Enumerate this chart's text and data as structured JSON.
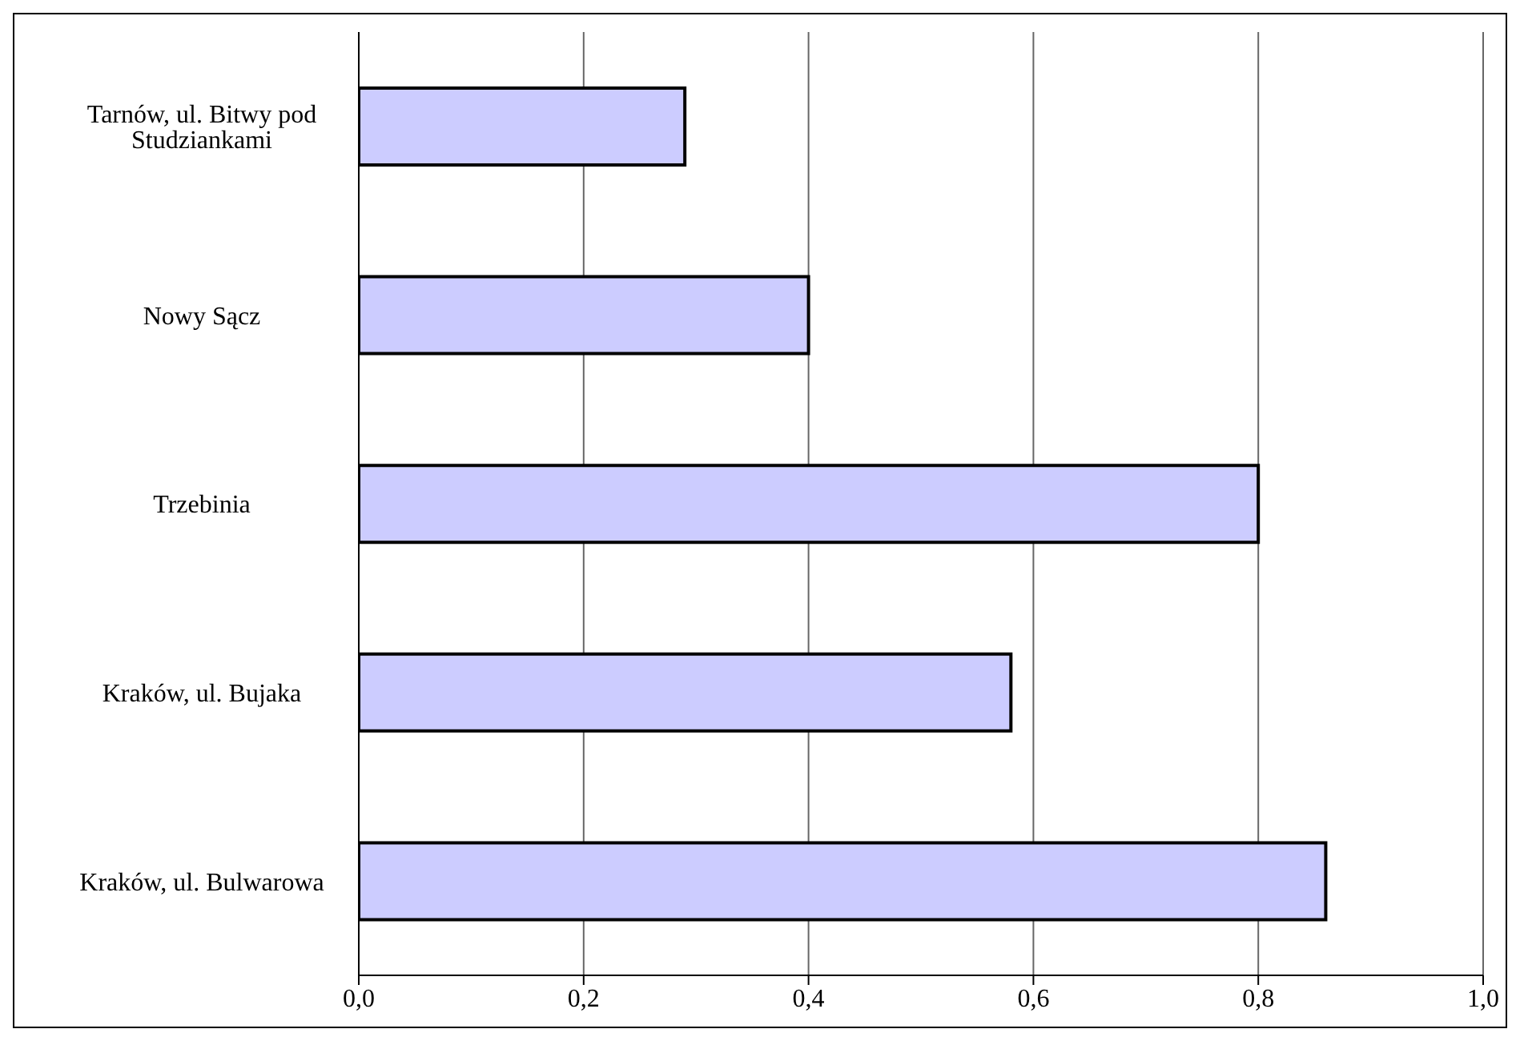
{
  "chart_data": {
    "type": "bar",
    "orientation": "horizontal",
    "categories": [
      "Tarnów, ul. Bitwy pod Studziankami",
      "Nowy Sącz",
      "Trzebinia",
      "Kraków, ul. Bujaka",
      "Kraków, ul. Bulwarowa"
    ],
    "values": [
      0.29,
      0.4,
      0.8,
      0.58,
      0.86
    ],
    "color": "#ccccff",
    "xlim": [
      0,
      1
    ],
    "xticks": [
      {
        "value": 0,
        "label": "0,0"
      },
      {
        "value": 0.2,
        "label": "0,2"
      },
      {
        "value": 0.4,
        "label": "0,4"
      },
      {
        "value": 0.6,
        "label": "0,6"
      },
      {
        "value": 0.8,
        "label": "0,8"
      },
      {
        "value": 1,
        "label": "1,0"
      }
    ],
    "grid": "x",
    "legend": false
  }
}
